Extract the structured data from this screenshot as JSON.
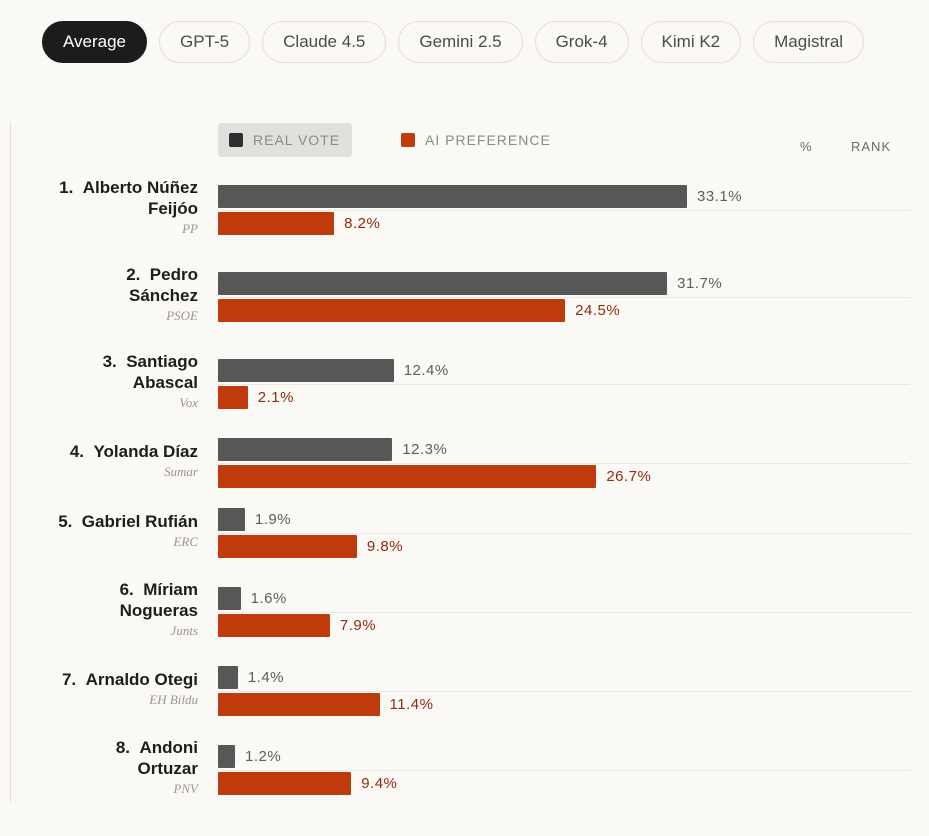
{
  "tabs": [
    "Average",
    "GPT-5",
    "Claude 4.5",
    "Gemini 2.5",
    "Grok-4",
    "Kimi K2",
    "Magistral"
  ],
  "active_tab": "Average",
  "legend": {
    "real": "REAL VOTE",
    "ai": "AI PREFERENCE"
  },
  "columns": {
    "pct": "%",
    "rank": "RANK"
  },
  "colors": {
    "real": "#575757",
    "ai": "#bf3b0b",
    "active_tab": "#1c1c1c"
  },
  "chart_data": {
    "type": "bar",
    "orientation": "horizontal",
    "categories": [
      {
        "rank": "1.",
        "name_lines": [
          "Alberto Núñez",
          "Feijóo"
        ],
        "party": "PP"
      },
      {
        "rank": "2.",
        "name_lines": [
          "Pedro",
          "Sánchez"
        ],
        "party": "PSOE"
      },
      {
        "rank": "3.",
        "name_lines": [
          "Santiago",
          "Abascal"
        ],
        "party": "Vox"
      },
      {
        "rank": "4.",
        "name_lines": [
          "Yolanda Díaz"
        ],
        "party": "Sumar"
      },
      {
        "rank": "5.",
        "name_lines": [
          "Gabriel Rufián"
        ],
        "party": "ERC"
      },
      {
        "rank": "6.",
        "name_lines": [
          "Míriam",
          "Nogueras"
        ],
        "party": "Junts"
      },
      {
        "rank": "7.",
        "name_lines": [
          "Arnaldo Otegi"
        ],
        "party": "EH Bildu"
      },
      {
        "rank": "8.",
        "name_lines": [
          "Andoni",
          "Ortuzar"
        ],
        "party": "PNV"
      }
    ],
    "series": [
      {
        "name": "REAL VOTE",
        "values": [
          33.1,
          31.7,
          12.4,
          12.3,
          1.9,
          1.6,
          1.4,
          1.2
        ],
        "labels": [
          "33.1%",
          "31.7%",
          "12.4%",
          "12.3%",
          "1.9%",
          "1.6%",
          "1.4%",
          "1.2%"
        ]
      },
      {
        "name": "AI PREFERENCE",
        "values": [
          8.2,
          24.5,
          2.1,
          26.7,
          9.8,
          7.9,
          11.4,
          9.4
        ],
        "labels": [
          "8.2%",
          "24.5%",
          "2.1%",
          "26.7%",
          "9.8%",
          "7.9%",
          "11.4%",
          "9.4%"
        ]
      }
    ],
    "xlim": [
      0,
      33.1
    ],
    "grid": false,
    "legend_position": "top-left"
  }
}
